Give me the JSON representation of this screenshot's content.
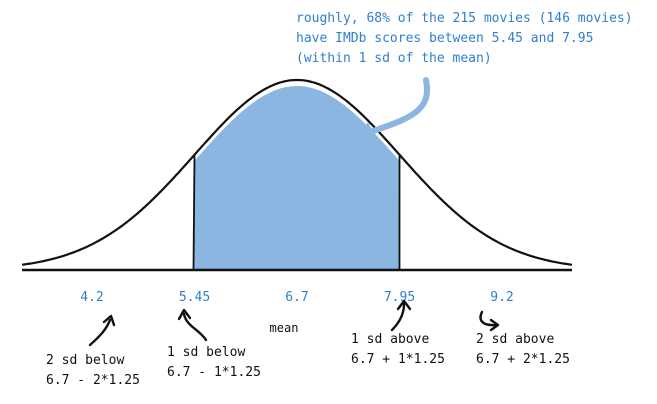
{
  "colors": {
    "accent_blue": "#2f7fd0",
    "fill_blue": "#8bb6e2",
    "ink": "#111111"
  },
  "annotation": {
    "line1": "roughly, 68% of the 215 movies (146 movies)",
    "line2": "have IMDb scores between 5.45 and 7.95",
    "line3": "(within 1 sd of the mean)"
  },
  "axis": {
    "ticks": [
      {
        "value": 4.2,
        "label": "4.2"
      },
      {
        "value": 5.45,
        "label": "5.45"
      },
      {
        "value": 6.7,
        "label": "6.7"
      },
      {
        "value": 7.95,
        "label": "7.95"
      },
      {
        "value": 9.2,
        "label": "9.2"
      }
    ],
    "mean_label": "mean"
  },
  "distribution": {
    "mean": 6.7,
    "sd": 1.25,
    "shaded_from": 5.45,
    "shaded_to": 7.95
  },
  "notes": {
    "minus2": {
      "line1": "2 sd below",
      "line2": "6.7 - 2*1.25"
    },
    "minus1": {
      "line1": "1 sd below",
      "line2": "6.7 - 1*1.25"
    },
    "plus1": {
      "line1": "1 sd above",
      "line2": "6.7 + 1*1.25"
    },
    "plus2": {
      "line1": "2 sd above",
      "line2": "6.7 + 2*1.25"
    }
  }
}
